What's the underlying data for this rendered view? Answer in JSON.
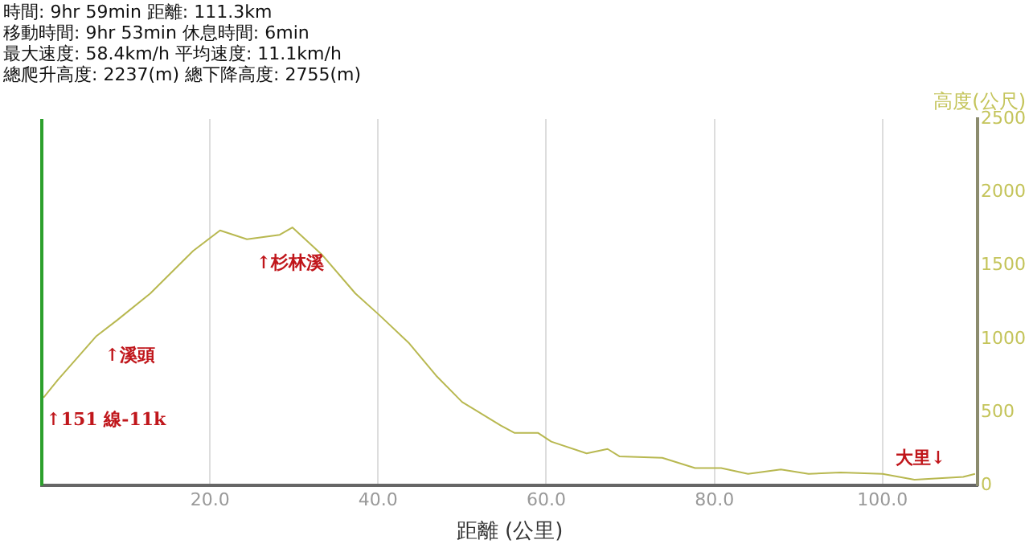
{
  "chart_data": {
    "type": "line",
    "subtitle": "時間: 9hr 59min  距離: 111.3km\n移動時間: 9hr 53min  休息時間: 6min\n最大速度: 58.4km/h  平均速度: 11.1km/h\n總爬升高度: 2237(m)  總下降高度: 2755(m)",
    "xlabel": "距離 (公里)",
    "ylabel": "高度(公尺)",
    "x": [
      0.2,
      1.9,
      6.5,
      9,
      12.9,
      18,
      21.2,
      24.4,
      28.3,
      29.8,
      33.4,
      37.3,
      40.2,
      43.7,
      46.9,
      50,
      54.6,
      56.2,
      59,
      60.6,
      64.8,
      67.3,
      68.7,
      73.8,
      77.7,
      80.8,
      84,
      87.9,
      91.2,
      95,
      100,
      103.8,
      109.6,
      111
    ],
    "series": [
      {
        "color": "#b8b850",
        "values": [
          600,
          720,
          1020,
          1130,
          1310,
          1600,
          1740,
          1680,
          1710,
          1760,
          1570,
          1310,
          1160,
          970,
          750,
          570,
          410,
          360,
          360,
          300,
          220,
          250,
          200,
          190,
          120,
          120,
          80,
          110,
          80,
          90,
          80,
          40,
          60,
          80
        ]
      }
    ],
    "xlim": [
      0,
      111.3
    ],
    "xticks": [
      {
        "value": 20,
        "label": "20.0"
      },
      {
        "value": 40,
        "label": "40.0"
      },
      {
        "value": 60,
        "label": "60.0"
      },
      {
        "value": 80,
        "label": "80.0"
      },
      {
        "value": 100,
        "label": "100.0"
      }
    ],
    "ylim": [
      0,
      2500
    ],
    "yticks": [
      0,
      500,
      1000,
      1500,
      2000,
      2500
    ],
    "grid": "x",
    "legend": false,
    "marker": "none",
    "line_style": "solid",
    "annotations": [
      {
        "text": "↑151 線-11k",
        "x": 0.5,
        "y": 620
      },
      {
        "text": "↑溪頭",
        "x": 7.5,
        "y": 1060
      },
      {
        "text": "↑杉林溪",
        "x": 25.5,
        "y": 1690
      },
      {
        "text": "大里↓",
        "x": 107.5,
        "y": 50
      }
    ]
  }
}
